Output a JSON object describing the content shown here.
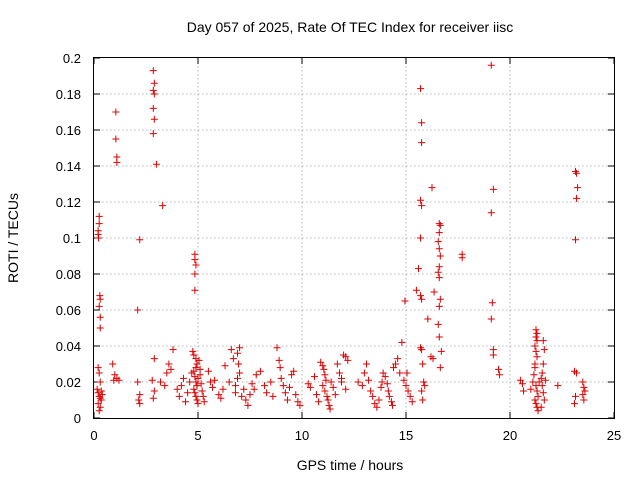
{
  "chart_data": {
    "type": "scatter",
    "title": "Day 057 of 2025, Rate Of TEC Index for receiver iisc",
    "xlabel": "GPS time / hours",
    "ylabel": "ROTI / TECUs",
    "xlim": [
      0,
      25
    ],
    "ylim": [
      0,
      0.2
    ],
    "xticks": [
      0,
      5,
      10,
      15,
      20,
      25
    ],
    "yticks": [
      0,
      0.02,
      0.04,
      0.06,
      0.08,
      0.1,
      0.12,
      0.14,
      0.16,
      0.18,
      0.2
    ],
    "xtick_labels": [
      "0",
      "5",
      "10",
      "15",
      "20",
      "25"
    ],
    "ytick_labels": [
      "0",
      "0.02",
      "0.04",
      "0.06",
      "0.08",
      "0.1",
      "0.12",
      "0.14",
      "0.16",
      "0.18",
      "0.2"
    ],
    "grid": true,
    "marker": "+",
    "color": "#dd0000",
    "points": [
      [
        0.2,
        0.104
      ],
      [
        0.2,
        0.102
      ],
      [
        0.22,
        0.1
      ],
      [
        0.25,
        0.112
      ],
      [
        0.25,
        0.108
      ],
      [
        0.28,
        0.068
      ],
      [
        0.3,
        0.066
      ],
      [
        0.25,
        0.062
      ],
      [
        0.3,
        0.056
      ],
      [
        0.3,
        0.05
      ],
      [
        0.2,
        0.028
      ],
      [
        0.25,
        0.025
      ],
      [
        0.3,
        0.02
      ],
      [
        0.15,
        0.016
      ],
      [
        0.2,
        0.014
      ],
      [
        0.25,
        0.012
      ],
      [
        0.3,
        0.011
      ],
      [
        0.35,
        0.01
      ],
      [
        0.2,
        0.008
      ],
      [
        0.3,
        0.006
      ],
      [
        0.25,
        0.004
      ],
      [
        0.35,
        0.015
      ],
      [
        0.4,
        0.013
      ],
      [
        1.05,
        0.17
      ],
      [
        1.05,
        0.155
      ],
      [
        1.1,
        0.145
      ],
      [
        1.1,
        0.142
      ],
      [
        0.9,
        0.03
      ],
      [
        1.0,
        0.024
      ],
      [
        1.1,
        0.022
      ],
      [
        0.95,
        0.021
      ],
      [
        1.2,
        0.021
      ],
      [
        2.1,
        0.06
      ],
      [
        2.2,
        0.099
      ],
      [
        2.1,
        0.02
      ],
      [
        2.2,
        0.013
      ],
      [
        2.15,
        0.01
      ],
      [
        2.2,
        0.008
      ],
      [
        2.85,
        0.193
      ],
      [
        2.9,
        0.186
      ],
      [
        2.85,
        0.182
      ],
      [
        2.9,
        0.18
      ],
      [
        2.85,
        0.172
      ],
      [
        2.9,
        0.166
      ],
      [
        2.85,
        0.158
      ],
      [
        3.0,
        0.141
      ],
      [
        3.3,
        0.118
      ],
      [
        2.9,
        0.033
      ],
      [
        2.8,
        0.021
      ],
      [
        2.9,
        0.015
      ],
      [
        2.85,
        0.011
      ],
      [
        3.2,
        0.02
      ],
      [
        3.4,
        0.018
      ],
      [
        3.5,
        0.025
      ],
      [
        3.7,
        0.027
      ],
      [
        3.6,
        0.03
      ],
      [
        3.8,
        0.038
      ],
      [
        4.0,
        0.016
      ],
      [
        4.2,
        0.018
      ],
      [
        4.3,
        0.022
      ],
      [
        4.1,
        0.012
      ],
      [
        4.4,
        0.009
      ],
      [
        4.5,
        0.014
      ],
      [
        4.6,
        0.02
      ],
      [
        4.7,
        0.025
      ],
      [
        4.85,
        0.091
      ],
      [
        4.85,
        0.088
      ],
      [
        4.9,
        0.085
      ],
      [
        4.85,
        0.08
      ],
      [
        4.85,
        0.071
      ],
      [
        4.8,
        0.035
      ],
      [
        4.9,
        0.033
      ],
      [
        4.95,
        0.03
      ],
      [
        4.9,
        0.028
      ],
      [
        4.8,
        0.026
      ],
      [
        4.85,
        0.023
      ],
      [
        4.9,
        0.02
      ],
      [
        4.95,
        0.018
      ],
      [
        4.8,
        0.016
      ],
      [
        4.85,
        0.014
      ],
      [
        4.9,
        0.012
      ],
      [
        4.95,
        0.01
      ],
      [
        5.0,
        0.008
      ],
      [
        5.0,
        0.022
      ],
      [
        5.05,
        0.032
      ],
      [
        5.1,
        0.027
      ],
      [
        5.15,
        0.019
      ],
      [
        5.2,
        0.015
      ],
      [
        5.25,
        0.012
      ],
      [
        5.3,
        0.009
      ],
      [
        4.75,
        0.037
      ],
      [
        5.1,
        0.024
      ],
      [
        5.5,
        0.026
      ],
      [
        5.6,
        0.02
      ],
      [
        5.7,
        0.017
      ],
      [
        5.8,
        0.021
      ],
      [
        6.0,
        0.013
      ],
      [
        6.1,
        0.011
      ],
      [
        6.2,
        0.016
      ],
      [
        6.3,
        0.029
      ],
      [
        6.5,
        0.02
      ],
      [
        6.6,
        0.038
      ],
      [
        6.7,
        0.033
      ],
      [
        6.8,
        0.018
      ],
      [
        6.9,
        0.036
      ],
      [
        7.0,
        0.039
      ],
      [
        6.95,
        0.03
      ],
      [
        7.0,
        0.025
      ],
      [
        6.9,
        0.022
      ],
      [
        6.8,
        0.014
      ],
      [
        7.1,
        0.012
      ],
      [
        7.2,
        0.016
      ],
      [
        7.3,
        0.01
      ],
      [
        7.4,
        0.007
      ],
      [
        7.5,
        0.013
      ],
      [
        7.6,
        0.019
      ],
      [
        7.7,
        0.016
      ],
      [
        7.8,
        0.024
      ],
      [
        8.0,
        0.026
      ],
      [
        8.2,
        0.018
      ],
      [
        8.3,
        0.014
      ],
      [
        8.5,
        0.02
      ],
      [
        8.6,
        0.012
      ],
      [
        8.8,
        0.039
      ],
      [
        8.9,
        0.032
      ],
      [
        8.95,
        0.028
      ],
      [
        9.0,
        0.022
      ],
      [
        9.1,
        0.018
      ],
      [
        9.2,
        0.014
      ],
      [
        9.3,
        0.01
      ],
      [
        9.4,
        0.017
      ],
      [
        9.5,
        0.024
      ],
      [
        9.6,
        0.026
      ],
      [
        9.7,
        0.013
      ],
      [
        9.8,
        0.009
      ],
      [
        9.9,
        0.007
      ],
      [
        10.3,
        0.019
      ],
      [
        10.4,
        0.017
      ],
      [
        10.6,
        0.023
      ],
      [
        10.7,
        0.013
      ],
      [
        10.8,
        0.009
      ],
      [
        10.9,
        0.031
      ],
      [
        11.0,
        0.029
      ],
      [
        11.05,
        0.027
      ],
      [
        11.1,
        0.024
      ],
      [
        11.15,
        0.021
      ],
      [
        11.0,
        0.018
      ],
      [
        11.1,
        0.015
      ],
      [
        11.2,
        0.012
      ],
      [
        11.25,
        0.01
      ],
      [
        11.3,
        0.007
      ],
      [
        11.35,
        0.005
      ],
      [
        11.4,
        0.02
      ],
      [
        11.5,
        0.017
      ],
      [
        11.6,
        0.013
      ],
      [
        11.7,
        0.03
      ],
      [
        11.8,
        0.025
      ],
      [
        11.9,
        0.022
      ],
      [
        12.0,
        0.035
      ],
      [
        12.1,
        0.034
      ],
      [
        12.2,
        0.032
      ],
      [
        11.9,
        0.02
      ],
      [
        12.1,
        0.016
      ],
      [
        12.7,
        0.02
      ],
      [
        12.9,
        0.018
      ],
      [
        13.0,
        0.025
      ],
      [
        13.1,
        0.03
      ],
      [
        13.2,
        0.021
      ],
      [
        13.3,
        0.015
      ],
      [
        13.4,
        0.012
      ],
      [
        13.5,
        0.008
      ],
      [
        13.6,
        0.006
      ],
      [
        13.7,
        0.01
      ],
      [
        13.8,
        0.017
      ],
      [
        13.85,
        0.02
      ],
      [
        13.9,
        0.025
      ],
      [
        14.0,
        0.023
      ],
      [
        14.1,
        0.019
      ],
      [
        14.15,
        0.015
      ],
      [
        14.2,
        0.012
      ],
      [
        14.3,
        0.009
      ],
      [
        14.35,
        0.007
      ],
      [
        14.4,
        0.028
      ],
      [
        14.5,
        0.03
      ],
      [
        14.6,
        0.033
      ],
      [
        14.7,
        0.025
      ],
      [
        14.8,
        0.042
      ],
      [
        14.9,
        0.021
      ],
      [
        15.0,
        0.018
      ],
      [
        15.1,
        0.015
      ],
      [
        14.95,
        0.065
      ],
      [
        15.05,
        0.025
      ],
      [
        15.2,
        0.012
      ],
      [
        15.3,
        0.009
      ],
      [
        15.5,
        0.071
      ],
      [
        15.6,
        0.083
      ],
      [
        15.7,
        0.183
      ],
      [
        15.75,
        0.164
      ],
      [
        15.75,
        0.153
      ],
      [
        15.7,
        0.121
      ],
      [
        15.75,
        0.118
      ],
      [
        15.7,
        0.1
      ],
      [
        15.7,
        0.068
      ],
      [
        15.75,
        0.066
      ],
      [
        15.7,
        0.039
      ],
      [
        15.75,
        0.038
      ],
      [
        15.8,
        0.03
      ],
      [
        15.85,
        0.02
      ],
      [
        15.75,
        0.015
      ],
      [
        15.8,
        0.01
      ],
      [
        15.9,
        0.018
      ],
      [
        16.05,
        0.055
      ],
      [
        16.2,
        0.034
      ],
      [
        16.3,
        0.033
      ],
      [
        16.25,
        0.128
      ],
      [
        16.35,
        0.07
      ],
      [
        16.6,
        0.108
      ],
      [
        16.65,
        0.107
      ],
      [
        16.6,
        0.103
      ],
      [
        16.55,
        0.098
      ],
      [
        16.6,
        0.094
      ],
      [
        16.65,
        0.09
      ],
      [
        16.6,
        0.084
      ],
      [
        16.55,
        0.081
      ],
      [
        16.6,
        0.078
      ],
      [
        16.65,
        0.066
      ],
      [
        16.6,
        0.062
      ],
      [
        16.55,
        0.052
      ],
      [
        16.6,
        0.045
      ],
      [
        16.65,
        0.028
      ],
      [
        16.7,
        0.037
      ],
      [
        17.7,
        0.091
      ],
      [
        17.7,
        0.089
      ],
      [
        19.1,
        0.196
      ],
      [
        19.2,
        0.127
      ],
      [
        19.1,
        0.114
      ],
      [
        19.15,
        0.064
      ],
      [
        19.1,
        0.055
      ],
      [
        19.2,
        0.038
      ],
      [
        19.2,
        0.035
      ],
      [
        19.45,
        0.027
      ],
      [
        19.5,
        0.024
      ],
      [
        20.5,
        0.021
      ],
      [
        20.6,
        0.019
      ],
      [
        20.65,
        0.015
      ],
      [
        21.0,
        0.016
      ],
      [
        21.1,
        0.02
      ],
      [
        21.15,
        0.024
      ],
      [
        21.2,
        0.028
      ],
      [
        21.25,
        0.049
      ],
      [
        21.3,
        0.047
      ],
      [
        21.25,
        0.045
      ],
      [
        21.3,
        0.043
      ],
      [
        21.2,
        0.04
      ],
      [
        21.25,
        0.037
      ],
      [
        21.3,
        0.034
      ],
      [
        21.2,
        0.03
      ],
      [
        21.25,
        0.018
      ],
      [
        21.3,
        0.015
      ],
      [
        21.35,
        0.012
      ],
      [
        21.2,
        0.01
      ],
      [
        21.25,
        0.008
      ],
      [
        21.3,
        0.006
      ],
      [
        21.35,
        0.004
      ],
      [
        21.4,
        0.02
      ],
      [
        21.5,
        0.022
      ],
      [
        21.55,
        0.025
      ],
      [
        21.6,
        0.043
      ],
      [
        21.65,
        0.038
      ],
      [
        21.6,
        0.03
      ],
      [
        21.55,
        0.018
      ],
      [
        21.6,
        0.014
      ],
      [
        21.65,
        0.01
      ],
      [
        21.7,
        0.021
      ],
      [
        21.5,
        0.006
      ],
      [
        22.3,
        0.018
      ],
      [
        23.15,
        0.137
      ],
      [
        23.2,
        0.136
      ],
      [
        23.25,
        0.128
      ],
      [
        23.2,
        0.122
      ],
      [
        23.15,
        0.099
      ],
      [
        23.1,
        0.026
      ],
      [
        23.2,
        0.025
      ],
      [
        23.15,
        0.012
      ],
      [
        23.1,
        0.008
      ],
      [
        23.5,
        0.02
      ],
      [
        23.55,
        0.017
      ],
      [
        23.6,
        0.015
      ],
      [
        23.5,
        0.013
      ],
      [
        23.55,
        0.01
      ]
    ]
  }
}
